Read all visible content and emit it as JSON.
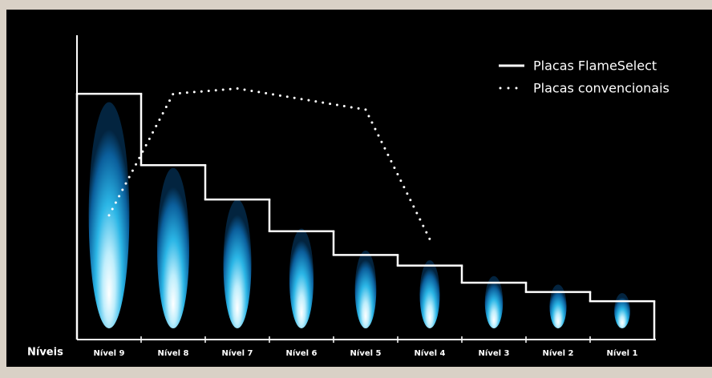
{
  "chart_data": {
    "type": "line",
    "x_label": "Níveis",
    "categories": [
      "Nível 9",
      "Nível 8",
      "Nível 7",
      "Nível 6",
      "Nível 5",
      "Nível 4",
      "Nível 3",
      "Nível 2",
      "Nível 1"
    ],
    "series": [
      {
        "name": "Placas FlameSelect",
        "color": "#ffffff",
        "style": "step",
        "values": [
          93,
          66,
          53,
          41,
          32,
          28,
          21.5,
          18,
          14.5
        ]
      },
      {
        "name": "Placas convencionais",
        "color": "#ffffff",
        "style": "dotted",
        "values": [
          47,
          93,
          95,
          91,
          87,
          38,
          null,
          null,
          null
        ]
      }
    ],
    "ylim": [
      0,
      100
    ],
    "legend": "top-right"
  }
}
